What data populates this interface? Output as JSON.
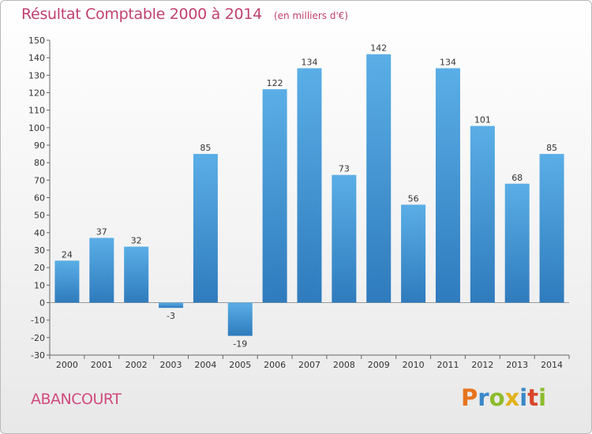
{
  "title": "Résultat Comptable 2000 à 2014",
  "subtitle": "(en milliers d'€)",
  "commune": "ABANCOURT",
  "brand": {
    "letters": [
      "P",
      "r",
      "o",
      "x",
      "i",
      "t",
      "i"
    ],
    "colors": [
      "#e8731c",
      "#3a88c8",
      "#8cbc2c",
      "#e2b21c",
      "#3a88c8",
      "#d9452a",
      "#8cbc2c"
    ]
  },
  "chart_data": {
    "type": "bar",
    "categories": [
      "2000",
      "2001",
      "2002",
      "2003",
      "2004",
      "2005",
      "2006",
      "2007",
      "2008",
      "2009",
      "2010",
      "2011",
      "2012",
      "2013",
      "2014"
    ],
    "values": [
      24,
      37,
      32,
      -3,
      85,
      -19,
      122,
      134,
      73,
      142,
      56,
      134,
      101,
      68,
      85
    ],
    "ylim": [
      -30,
      150
    ],
    "yticks": [
      -30,
      -20,
      -10,
      0,
      10,
      20,
      30,
      40,
      50,
      60,
      70,
      80,
      90,
      100,
      110,
      120,
      130,
      140,
      150
    ],
    "grid": false,
    "bar_color_light": "#5aaee6",
    "bar_color_dark": "#2f7bbd"
  }
}
